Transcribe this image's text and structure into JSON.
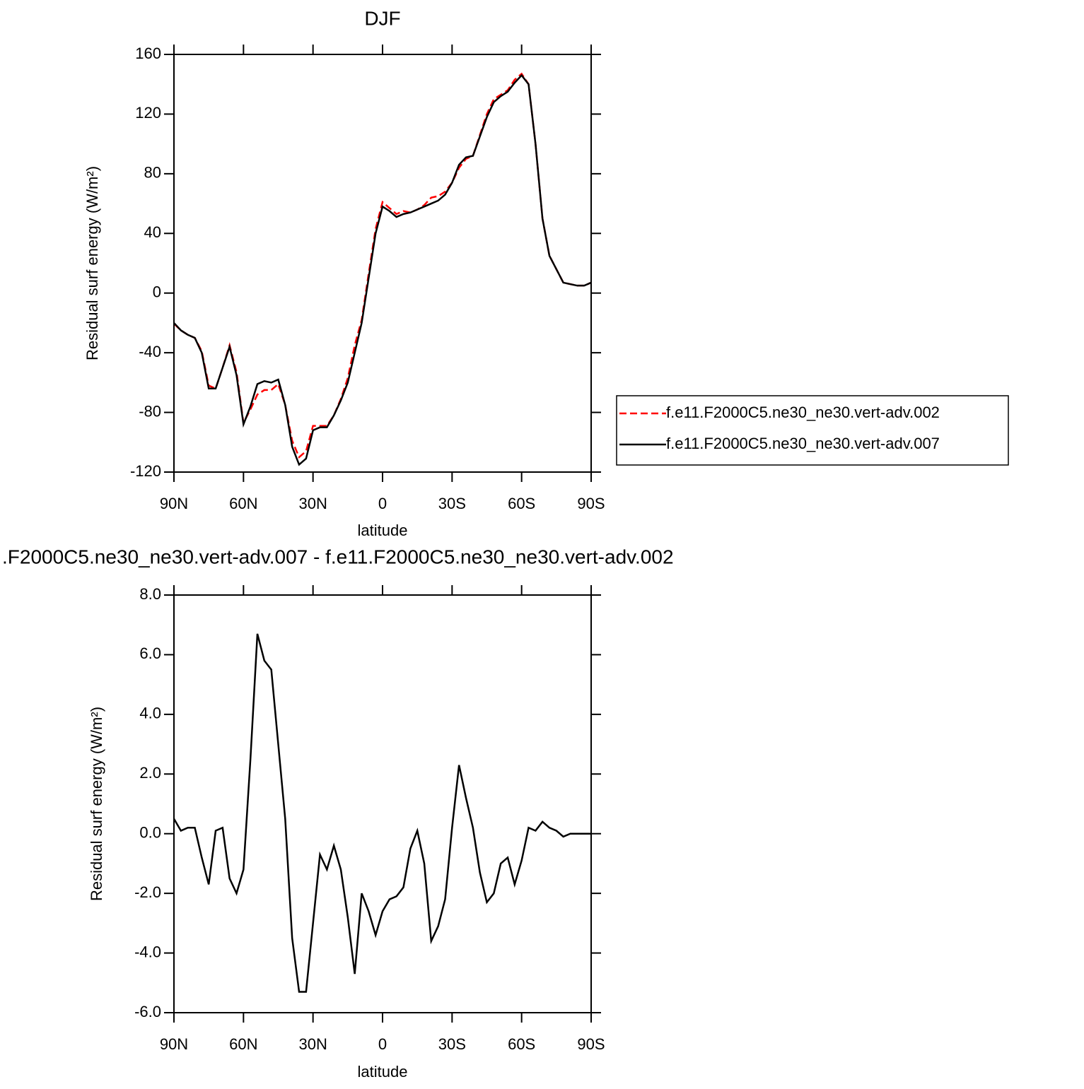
{
  "chart_data": [
    {
      "type": "line",
      "title": "DJF",
      "xlabel": "latitude",
      "ylabel": "Residual surf energy (W/m²)",
      "x": [
        90,
        87,
        84,
        81,
        78,
        75,
        72,
        69,
        66,
        63,
        60,
        57,
        54,
        51,
        48,
        45,
        42,
        39,
        36,
        33,
        30,
        27,
        24,
        21,
        18,
        15,
        12,
        9,
        6,
        3,
        0,
        -3,
        -6,
        -9,
        -12,
        -15,
        -18,
        -21,
        -24,
        -27,
        -30,
        -33,
        -36,
        -39,
        -42,
        -45,
        -48,
        -51,
        -54,
        -57,
        -60,
        -63,
        -66,
        -69,
        -72,
        -75,
        -78,
        -81,
        -84,
        -87,
        -90
      ],
      "series": [
        {
          "name": "f.e11.F2000C5.ne30_ne30.vert-adv.002",
          "color": "#ff0000",
          "style": "dashed",
          "values": [
            -20.5,
            -25,
            -28,
            -30,
            -39,
            -62,
            -64,
            -50,
            -35,
            -53,
            -87,
            -78,
            -68,
            -65,
            -65,
            -61,
            -75,
            -99,
            -110,
            -106,
            -89,
            -89,
            -89,
            -82,
            -71,
            -57,
            -35,
            -18,
            13,
            43,
            61,
            57,
            53,
            55,
            54,
            56,
            59,
            64,
            65,
            68,
            74,
            84,
            90,
            92,
            106,
            120,
            130,
            133,
            136,
            143,
            147,
            140,
            100,
            50,
            25,
            16,
            7,
            6,
            5,
            5,
            7
          ]
        },
        {
          "name": "f.e11.F2000C5.ne30_ne30.vert-adv.007",
          "color": "#000000",
          "style": "solid",
          "values": [
            -20,
            -25,
            -28,
            -30,
            -40,
            -64,
            -64,
            -50,
            -36,
            -55,
            -88,
            -76,
            -61,
            -59,
            -60,
            -58,
            -75,
            -103,
            -115,
            -111,
            -92,
            -90,
            -90,
            -82,
            -72,
            -60,
            -40,
            -20,
            10,
            40,
            58,
            55,
            51,
            53,
            54,
            56,
            58,
            60,
            62,
            66,
            74,
            86,
            91,
            92,
            105,
            118,
            128,
            132,
            135,
            141,
            146,
            140,
            100,
            50,
            25,
            16,
            7,
            6,
            5,
            5,
            7
          ]
        }
      ],
      "xlim": [
        90,
        -90
      ],
      "xticks": [
        {
          "value": 90,
          "label": "90N"
        },
        {
          "value": 60,
          "label": "60N"
        },
        {
          "value": 30,
          "label": "30N"
        },
        0,
        {
          "value": -30,
          "label": "30S"
        },
        {
          "value": -60,
          "label": "60S"
        },
        {
          "value": -90,
          "label": "90S"
        }
      ],
      "ylim": [
        -120,
        160
      ],
      "yticks": [
        -120,
        -80,
        -40,
        0,
        40,
        80,
        120,
        160
      ],
      "legend": "right"
    },
    {
      "type": "line",
      "title": ".F2000C5.ne30_ne30.vert-adv.007 - f.e11.F2000C5.ne30_ne30.vert-adv.002",
      "xlabel": "latitude",
      "ylabel": "Residual surf energy (W/m²)",
      "x": [
        90,
        87,
        84,
        81,
        78,
        75,
        72,
        69,
        66,
        63,
        60,
        57,
        54,
        51,
        48,
        45,
        42,
        39,
        36,
        33,
        30,
        27,
        24,
        21,
        18,
        15,
        12,
        9,
        6,
        3,
        0,
        -3,
        -6,
        -9,
        -12,
        -15,
        -18,
        -21,
        -24,
        -27,
        -30,
        -33,
        -36,
        -39,
        -42,
        -45,
        -48,
        -51,
        -54,
        -57,
        -60,
        -63,
        -66,
        -69,
        -72,
        -75,
        -78,
        -81,
        -84,
        -87,
        -90
      ],
      "series": [
        {
          "color": "#000000",
          "style": "solid",
          "values": [
            0.5,
            0.1,
            0.2,
            0.2,
            -0.8,
            -1.7,
            0.1,
            0.2,
            -1.5,
            -2.0,
            -1.2,
            2.5,
            6.7,
            5.8,
            5.5,
            3.0,
            0.5,
            -3.5,
            -5.3,
            -5.3,
            -3.0,
            -0.7,
            -1.2,
            -0.4,
            -1.2,
            -2.8,
            -4.7,
            -2.0,
            -2.6,
            -3.4,
            -2.6,
            -2.2,
            -2.1,
            -1.8,
            -0.5,
            0.1,
            -1.0,
            -3.6,
            -3.1,
            -2.2,
            0.2,
            2.3,
            1.2,
            0.2,
            -1.3,
            -2.3,
            -2.0,
            -1.0,
            -0.8,
            -1.7,
            -0.9,
            0.2,
            0.1,
            0.4,
            0.2,
            0.1,
            -0.1,
            0.0,
            0.0,
            0.0,
            0.0
          ]
        }
      ],
      "xlim": [
        90,
        -90
      ],
      "xticks": [
        {
          "value": 90,
          "label": "90N"
        },
        {
          "value": 60,
          "label": "60N"
        },
        {
          "value": 30,
          "label": "30N"
        },
        0,
        {
          "value": -30,
          "label": "30S"
        },
        {
          "value": -60,
          "label": "60S"
        },
        {
          "value": -90,
          "label": "90S"
        }
      ],
      "ylim": [
        -6,
        8
      ],
      "yticks": [
        {
          "value": -6,
          "label": "-6.0"
        },
        {
          "value": -4,
          "label": "-4.0"
        },
        {
          "value": -2,
          "label": "-2.0"
        },
        {
          "value": 0,
          "label": "0.0"
        },
        {
          "value": 2,
          "label": "2.0"
        },
        {
          "value": 4,
          "label": "4.0"
        },
        {
          "value": 6,
          "label": "6.0"
        },
        {
          "value": 8,
          "label": "8.0"
        }
      ]
    }
  ]
}
